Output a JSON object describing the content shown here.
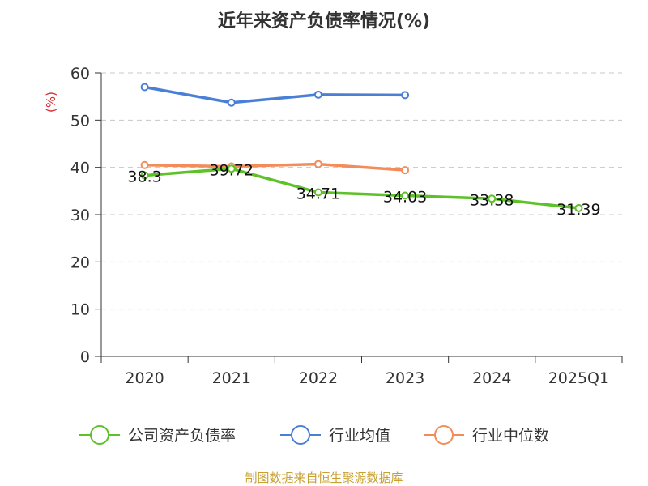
{
  "chart_data": {
    "type": "line",
    "title": "近年来资产负债率情况(%)",
    "ylabel": "(%)",
    "xlabel": "",
    "categories": [
      "2020",
      "2021",
      "2022",
      "2023",
      "2024",
      "2025Q1"
    ],
    "ylim": [
      0,
      60
    ],
    "yticks": [
      0,
      10,
      20,
      30,
      40,
      50,
      60
    ],
    "grid": true,
    "legend_position": "bottom",
    "series": [
      {
        "name": "公司资产负债率",
        "color": "#5dc128",
        "values": [
          38.3,
          39.72,
          34.71,
          34.03,
          33.38,
          31.39
        ],
        "labels": [
          "38.3",
          "39.72",
          "34.71",
          "34.03",
          "33.38",
          "31.39"
        ]
      },
      {
        "name": "行业均值",
        "color": "#4a7fd6",
        "values": [
          57.0,
          53.7,
          55.4,
          55.3,
          null,
          null
        ]
      },
      {
        "name": "行业中位数",
        "color": "#f28c5a",
        "values": [
          40.5,
          40.2,
          40.7,
          39.4,
          null,
          null
        ]
      }
    ],
    "source": "制图数据来自恒生聚源数据库"
  }
}
